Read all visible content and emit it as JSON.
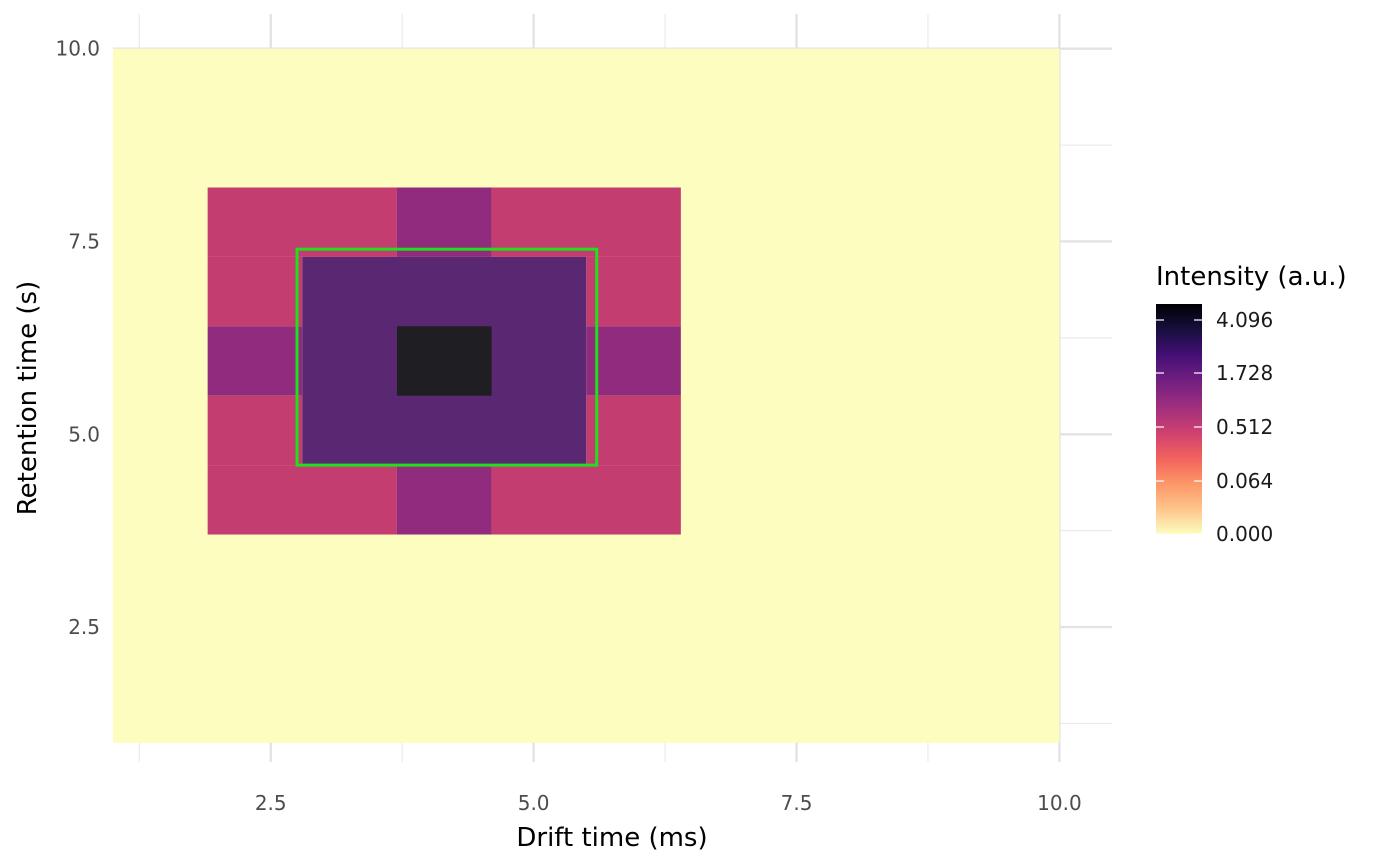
{
  "chart_data": {
    "type": "heatmap",
    "xlabel": "Drift time (ms)",
    "ylabel": "Retention time (s)",
    "xlim": [
      1,
      10.5
    ],
    "ylim": [
      0.75,
      10.45
    ],
    "x_ticks": [
      2.5,
      5.0,
      7.5,
      10.0
    ],
    "x_tick_labels": [
      "2.5",
      "5.0",
      "7.5",
      "10.0"
    ],
    "y_ticks": [
      2.5,
      5.0,
      7.5,
      10.0
    ],
    "y_tick_labels": [
      "2.5",
      "5.0",
      "7.5",
      "10.0"
    ],
    "grid": true,
    "background_color": "#FCFDBF",
    "cells": [
      {
        "x0": 1.9,
        "x1": 3.7,
        "y0": 7.3,
        "y1": 8.2,
        "value": 0.512
      },
      {
        "x0": 3.7,
        "x1": 4.6,
        "y0": 7.3,
        "y1": 8.2,
        "value": 1.1
      },
      {
        "x0": 4.6,
        "x1": 6.4,
        "y0": 7.3,
        "y1": 8.2,
        "value": 0.512
      },
      {
        "x0": 1.9,
        "x1": 2.8,
        "y0": 6.4,
        "y1": 7.3,
        "value": 0.512
      },
      {
        "x0": 5.5,
        "x1": 6.4,
        "y0": 6.4,
        "y1": 7.3,
        "value": 0.512
      },
      {
        "x0": 1.9,
        "x1": 2.8,
        "y0": 5.5,
        "y1": 6.4,
        "value": 1.1
      },
      {
        "x0": 5.5,
        "x1": 6.4,
        "y0": 5.5,
        "y1": 6.4,
        "value": 1.1
      },
      {
        "x0": 1.9,
        "x1": 2.8,
        "y0": 4.6,
        "y1": 5.5,
        "value": 0.512
      },
      {
        "x0": 5.5,
        "x1": 6.4,
        "y0": 4.6,
        "y1": 5.5,
        "value": 0.512
      },
      {
        "x0": 1.9,
        "x1": 3.7,
        "y0": 3.7,
        "y1": 4.6,
        "value": 0.512
      },
      {
        "x0": 3.7,
        "x1": 4.6,
        "y0": 3.7,
        "y1": 4.6,
        "value": 1.1
      },
      {
        "x0": 4.6,
        "x1": 6.4,
        "y0": 3.7,
        "y1": 4.6,
        "value": 0.512
      },
      {
        "x0": 2.8,
        "x1": 5.5,
        "y0": 4.6,
        "y1": 7.3,
        "value": 1.9
      },
      {
        "x0": 3.7,
        "x1": 4.6,
        "y0": 5.5,
        "y1": 6.4,
        "value": 4.8
      }
    ],
    "cell_colors": {
      "0.512": "#C33D71",
      "1.1": "#912B7E",
      "1.9": "#5A2873",
      "4.8": "#1F1E22"
    },
    "highlight_box": {
      "x0": 2.75,
      "x1": 5.6,
      "y0": 4.6,
      "y1": 7.4,
      "color": "#1FE01A"
    },
    "legend": {
      "title": "Intensity (a.u.)",
      "labels": [
        "4.096",
        "1.728",
        "0.512",
        "0.064",
        "0.000"
      ],
      "color_stops": [
        "#FCFDBF",
        "#FEC48A",
        "#FD9567",
        "#F1605D",
        "#CD4071",
        "#9E2F7F",
        "#721F81",
        "#440F76",
        "#180F3E",
        "#000004"
      ]
    }
  }
}
